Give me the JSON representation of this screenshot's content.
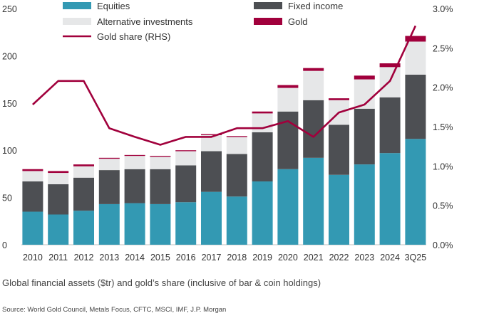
{
  "chart_data": {
    "type": "bar",
    "stacked": true,
    "categories": [
      "2010",
      "2011",
      "2012",
      "2013",
      "2014",
      "2015",
      "2016",
      "2017",
      "2018",
      "2019",
      "2020",
      "2021",
      "2022",
      "2023",
      "2024",
      "3Q25"
    ],
    "series": [
      {
        "name": "Equities",
        "color": "#3399b3",
        "values": [
          35,
          32,
          36,
          43,
          44,
          43,
          45,
          56,
          51,
          67,
          80,
          92,
          74,
          85,
          97,
          112
        ]
      },
      {
        "name": "Fixed income",
        "color": "#4d4f53",
        "values": [
          32,
          32,
          35,
          36,
          36,
          37,
          39,
          43,
          45,
          52,
          61,
          61,
          53,
          59,
          59,
          68
        ]
      },
      {
        "name": "Alternative investments",
        "color": "#e6e7e8",
        "values": [
          11,
          12,
          12,
          12,
          14,
          13,
          15,
          17,
          18,
          20,
          25,
          31,
          26,
          31,
          32,
          35
        ]
      },
      {
        "name": "Gold",
        "color": "#a1003c",
        "values": [
          2,
          2,
          2,
          1,
          1,
          1,
          1,
          1,
          1,
          2,
          3,
          3,
          2,
          4,
          4,
          6
        ]
      }
    ],
    "line": {
      "name": "Gold share (RHS)",
      "color": "#a1003c",
      "values": [
        1.78,
        2.08,
        2.08,
        1.48,
        1.37,
        1.27,
        1.37,
        1.37,
        1.48,
        1.48,
        1.57,
        1.37,
        1.68,
        1.78,
        2.08,
        2.78
      ]
    },
    "ylim": [
      0,
      250
    ],
    "y_ticks": [
      "0",
      "50",
      "100",
      "150",
      "200",
      "250"
    ],
    "y2lim": [
      0,
      3.0
    ],
    "y2_ticks": [
      "0.0%",
      "0.5%",
      "1.0%",
      "1.5%",
      "2.0%",
      "2.5%",
      "3.0%"
    ],
    "xlabel": "",
    "ylabel": "",
    "legend": [
      "Equities",
      "Fixed income",
      "Alternative investments",
      "Gold",
      "Gold share (RHS)"
    ],
    "legend_position": "top"
  },
  "caption": "Global financial assets ($tr) and gold’s share (inclusive of bar & coin holdings)",
  "source": "Source: World Gold Council, Metals Focus, CFTC, MSCI, IMF, J.P. Morgan"
}
